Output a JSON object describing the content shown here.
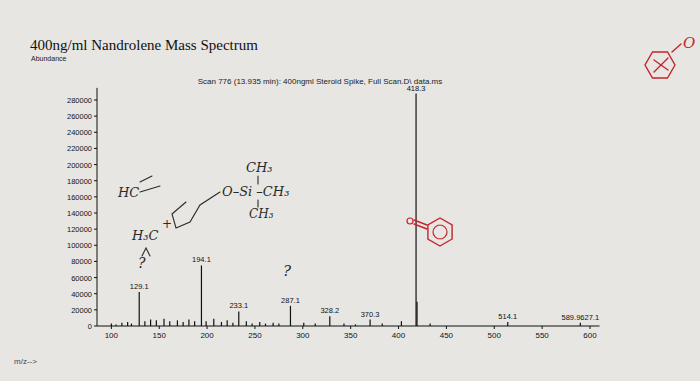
{
  "chart_data": {
    "type": "bar",
    "title": "400ng/ml Nandrolene Mass Spectrum",
    "subtitle": "Scan 776 (13.935 min): 400ngml Steroid Spike, Full Scan.D\\ data.ms",
    "y_label": "Abundance",
    "x_label": "m/z-->",
    "color": "#111111",
    "x": [
      100,
      105,
      111,
      117,
      121,
      129.1,
      135,
      141,
      147,
      155,
      161,
      169,
      175,
      181,
      187,
      194.1,
      199,
      207,
      215,
      221,
      227,
      233.1,
      241,
      247,
      255,
      261,
      269,
      275,
      287.1,
      301,
      313,
      328.2,
      343,
      355,
      370.3,
      383,
      403,
      418.3,
      419.3,
      433,
      514.1,
      589.9
    ],
    "values": [
      3000,
      2000,
      4000,
      5000,
      3000,
      42000,
      6000,
      8000,
      7000,
      9000,
      6000,
      7000,
      5000,
      8000,
      6000,
      75000,
      6000,
      9000,
      5000,
      7000,
      4000,
      18000,
      6000,
      3000,
      5000,
      3000,
      4000,
      3000,
      25000,
      4000,
      3000,
      12000,
      3000,
      2000,
      8000,
      3000,
      6000,
      288000,
      30000,
      3000,
      5000,
      4000
    ],
    "xlim": [
      85,
      610
    ],
    "ylim": [
      0,
      295000
    ],
    "xticks": [
      100,
      150,
      200,
      250,
      300,
      350,
      400,
      450,
      500,
      550,
      600
    ],
    "yticks": [
      0,
      20000,
      40000,
      60000,
      80000,
      100000,
      120000,
      140000,
      160000,
      180000,
      200000,
      220000,
      240000,
      260000,
      280000
    ],
    "grid": false,
    "annotations": [
      {
        "text": "129.1",
        "x": 129.1,
        "y": 42000
      },
      {
        "text": "194.1",
        "x": 194.1,
        "y": 75000
      },
      {
        "text": "233.1",
        "x": 233.1,
        "y": 18000
      },
      {
        "text": "287.1",
        "x": 287.1,
        "y": 25000
      },
      {
        "text": "328.2",
        "x": 328.2,
        "y": 12000
      },
      {
        "text": "370.3",
        "x": 370.3,
        "y": 8000
      },
      {
        "text": "418.3",
        "x": 418.3,
        "y": 288000
      },
      {
        "text": "514.1",
        "x": 514.1,
        "y": 5000
      },
      {
        "text": "589.9627.1",
        "x": 589.9,
        "y": 4000
      }
    ],
    "handwritten": [
      "CH₃",
      "O–Si –CH₃",
      "CH₃",
      "HC",
      "H₃C",
      "+",
      "?",
      "?",
      "O"
    ]
  }
}
